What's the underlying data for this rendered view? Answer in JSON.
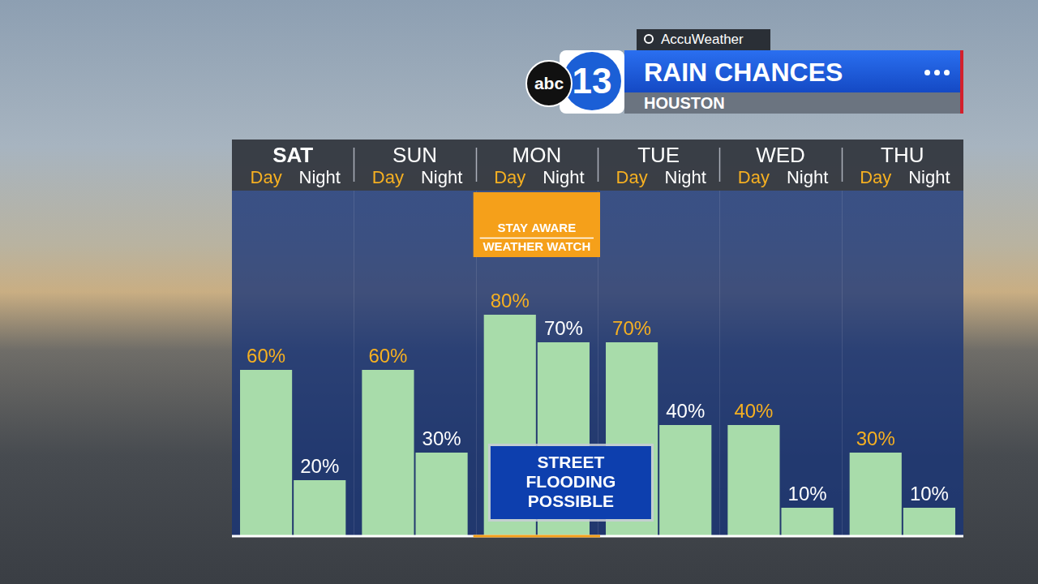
{
  "brand": {
    "network": "abc",
    "channel": "13",
    "provider": "AccuWeather"
  },
  "chart_data": {
    "type": "bar",
    "title": "RAIN CHANCES",
    "subtitle": "HOUSTON",
    "categories": [
      "SAT",
      "SUN",
      "MON",
      "TUE",
      "WED",
      "THU"
    ],
    "series": [
      {
        "name": "Day",
        "color": "#a8dcaa",
        "values": [
          60,
          60,
          80,
          70,
          40,
          30
        ],
        "value_labels": [
          "60%",
          "60%",
          "80%",
          "70%",
          "40%",
          "30%"
        ]
      },
      {
        "name": "Night",
        "color": "#a8dcaa",
        "values": [
          20,
          30,
          70,
          40,
          10,
          10
        ],
        "value_labels": [
          "20%",
          "30%",
          "70%",
          "40%",
          "10%",
          "10%"
        ]
      }
    ],
    "ylim": [
      0,
      100
    ],
    "grid": false,
    "data_labels": true,
    "annotations": [
      {
        "text": [
          "STAY AWARE",
          "WEATHER WATCH"
        ],
        "category": "MON"
      },
      {
        "text": "STREET FLOODING POSSIBLE",
        "category": "MON"
      }
    ]
  }
}
